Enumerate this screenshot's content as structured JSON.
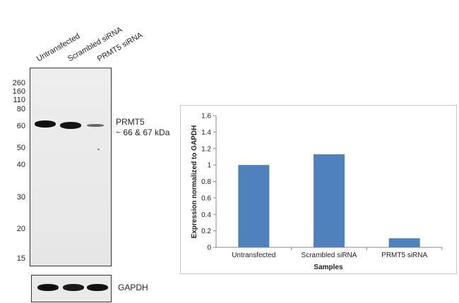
{
  "western_blot": {
    "lanes": [
      "Untransfected",
      "Scrambled siRNA",
      "PRMT5 siRNA"
    ],
    "mw_markers": [
      "260",
      "160",
      "110",
      "80",
      "60",
      "50",
      "40",
      "30",
      "20",
      "15"
    ],
    "target_label": "PRMT5",
    "target_size": "~ 66 & 67 kDa",
    "loading_control": "GAPDH"
  },
  "chart_data": {
    "type": "bar",
    "categories": [
      "Untransfected",
      "Scrambled siRNA",
      "PRMT5 siRNA"
    ],
    "values": [
      1.0,
      1.13,
      0.11
    ],
    "xlabel": "Samples",
    "ylabel": "Expression normalized to GAPDH",
    "ylim": [
      0,
      1.6
    ],
    "yticks": [
      "0",
      "0.2",
      "0.4",
      "0.6",
      "0.8",
      "1",
      "1.2",
      "1.4",
      "1.6"
    ],
    "bar_color": "#4f81bd",
    "grid": false,
    "legend": "none"
  }
}
